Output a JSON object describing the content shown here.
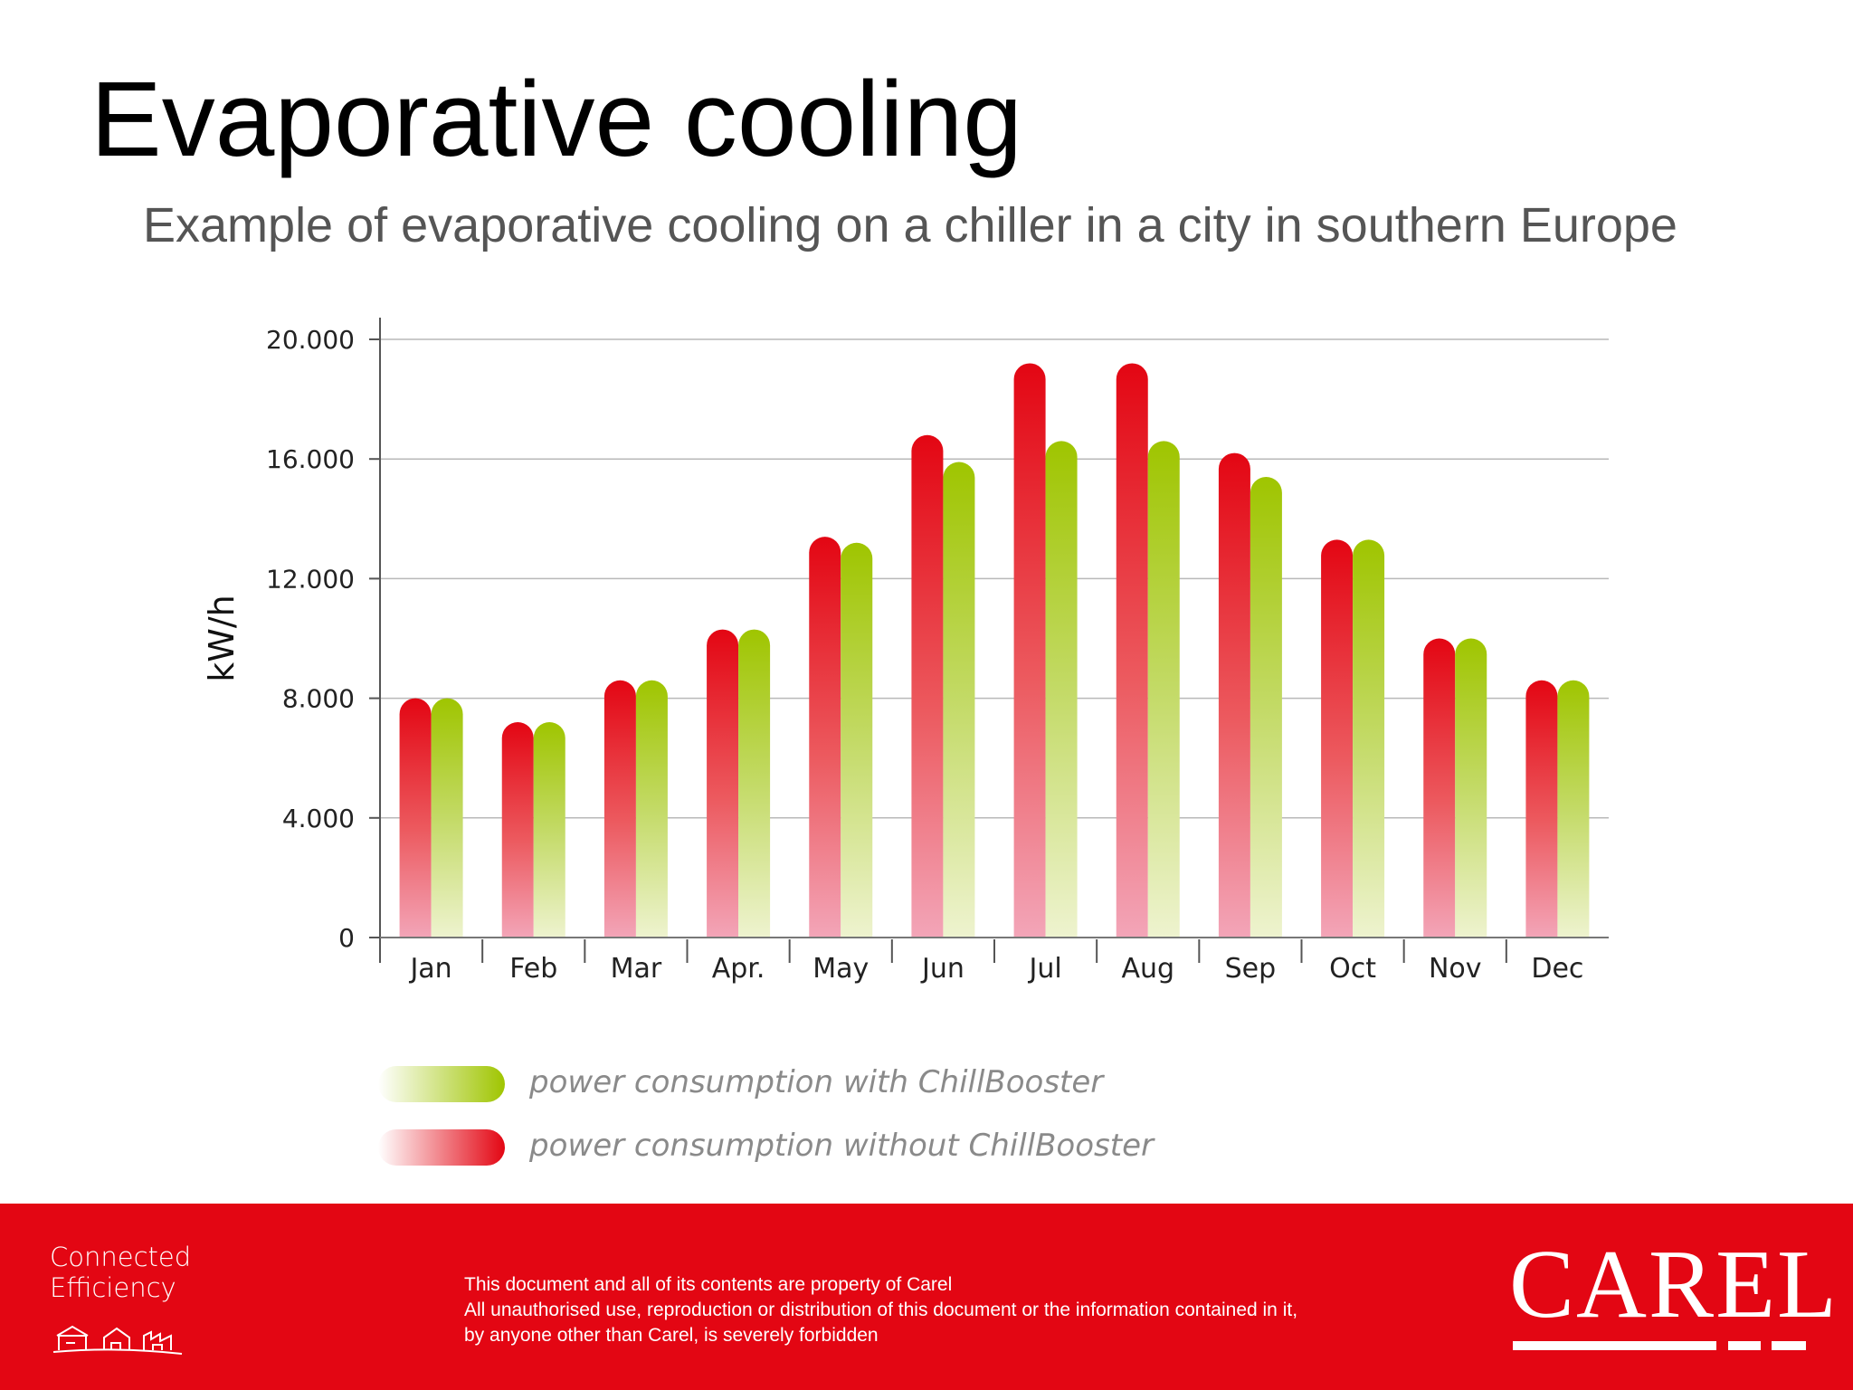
{
  "page": {
    "title": "Evaporative cooling",
    "subtitle": "Example of evaporative cooling on a chiller in a city in southern Europe"
  },
  "chart_data": {
    "type": "bar",
    "categories": [
      "Jan",
      "Feb",
      "Mar",
      "Apr.",
      "May",
      "Jun",
      "Jul",
      "Aug",
      "Sep",
      "Oct",
      "Nov",
      "Dec"
    ],
    "series": [
      {
        "name": "power consumption without ChillBooster",
        "color": "#e30613",
        "values": [
          8000,
          7200,
          8600,
          10300,
          13400,
          16800,
          19200,
          19200,
          16200,
          13300,
          10000,
          8600
        ]
      },
      {
        "name": "power consumption with ChillBooster",
        "color": "#9fc500",
        "values": [
          8000,
          7200,
          8600,
          10300,
          13200,
          15900,
          16600,
          16600,
          15400,
          13300,
          10000,
          8600
        ]
      }
    ],
    "ylabel": "kW/h",
    "xlabel": "",
    "ylim": [
      0,
      20000
    ],
    "yticks": [
      0,
      4000,
      8000,
      12000,
      16000,
      20000
    ],
    "ytick_labels": [
      "0",
      "4.000",
      "8.000",
      "12.000",
      "16.000",
      "20.000"
    ],
    "grid": true,
    "legend_position": "bottom-left"
  },
  "footer": {
    "tagline": [
      "Connected",
      "Efficiency"
    ],
    "disclaimer": [
      "This document and all of its contents are property of Carel",
      "All unauthorised use, reproduction or distribution of this document or the information contained in it,",
      "by anyone other than Carel, is severely forbidden"
    ],
    "brand": "CAREL",
    "background_color": "#e30613"
  }
}
